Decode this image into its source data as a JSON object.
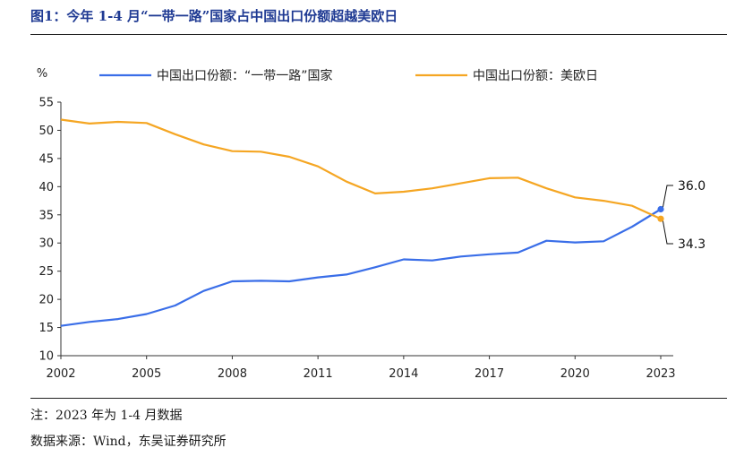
{
  "figure": {
    "title": "图1：今年 1-4 月“一带一路”国家占中国出口份额超越美欧日",
    "note": "注：2023 年为 1-4 月数据",
    "source": "数据来源：Wind，东吴证券研究所"
  },
  "chart_data": {
    "type": "line",
    "title": "",
    "xlabel": "",
    "ylabel": "%",
    "xlim": [
      2002,
      2023
    ],
    "ylim": [
      10,
      55
    ],
    "yticks": [
      10,
      15,
      20,
      25,
      30,
      35,
      40,
      45,
      50,
      55
    ],
    "xticks": [
      2002,
      2005,
      2008,
      2011,
      2014,
      2017,
      2020,
      2023
    ],
    "grid": false,
    "legend": "top-center",
    "series": [
      {
        "name": "中国出口份额：“一带一路”国家",
        "color": "#3a6ee8",
        "x": [
          2002,
          2003,
          2004,
          2005,
          2006,
          2007,
          2008,
          2009,
          2010,
          2011,
          2012,
          2013,
          2014,
          2015,
          2016,
          2017,
          2018,
          2019,
          2020,
          2021,
          2022,
          2023
        ],
        "y": [
          15.3,
          16.0,
          16.5,
          17.4,
          18.9,
          21.5,
          23.2,
          23.3,
          23.2,
          23.9,
          24.4,
          25.7,
          27.1,
          26.9,
          27.6,
          28.0,
          28.3,
          30.4,
          30.1,
          30.3,
          32.9,
          36.0
        ]
      },
      {
        "name": "中国出口份额：美欧日",
        "color": "#f5a623",
        "x": [
          2002,
          2003,
          2004,
          2005,
          2006,
          2007,
          2008,
          2009,
          2010,
          2011,
          2012,
          2013,
          2014,
          2015,
          2016,
          2017,
          2018,
          2019,
          2020,
          2021,
          2022,
          2023
        ],
        "y": [
          51.9,
          51.2,
          51.5,
          51.3,
          49.3,
          47.5,
          46.3,
          46.2,
          45.3,
          43.6,
          40.9,
          38.8,
          39.1,
          39.7,
          40.6,
          41.5,
          41.6,
          39.7,
          38.1,
          37.5,
          36.6,
          34.3
        ]
      }
    ],
    "annotations": [
      {
        "series": 0,
        "x": 2023,
        "y": 36.0,
        "label": "36.0"
      },
      {
        "series": 1,
        "x": 2023,
        "y": 34.3,
        "label": "34.3"
      }
    ]
  }
}
